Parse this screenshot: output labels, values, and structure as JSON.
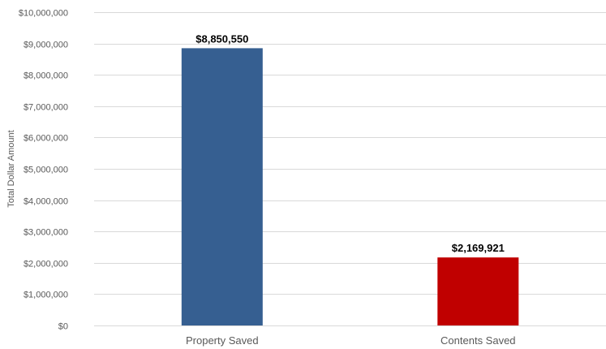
{
  "chart_data": {
    "type": "bar",
    "categories": [
      "Property Saved",
      "Contents Saved"
    ],
    "values": [
      8850550,
      2169921
    ],
    "value_labels": [
      "$8,850,550",
      "$2,169,921"
    ],
    "bar_colors": [
      "#365f91",
      "#c00000"
    ],
    "title": "",
    "xlabel": "",
    "ylabel": "Total Dollar Amount",
    "ylim": [
      0,
      10000000
    ],
    "y_ticks": [
      0,
      1000000,
      2000000,
      3000000,
      4000000,
      5000000,
      6000000,
      7000000,
      8000000,
      9000000,
      10000000
    ],
    "y_tick_labels": [
      "$0",
      "$1,000,000",
      "$2,000,000",
      "$3,000,000",
      "$4,000,000",
      "$5,000,000",
      "$6,000,000",
      "$7,000,000",
      "$8,000,000",
      "$9,000,000",
      "$10,000,000"
    ],
    "grid": true,
    "legend": "none",
    "gridline_color": "#d9d9d9",
    "text_color": "#595959"
  }
}
